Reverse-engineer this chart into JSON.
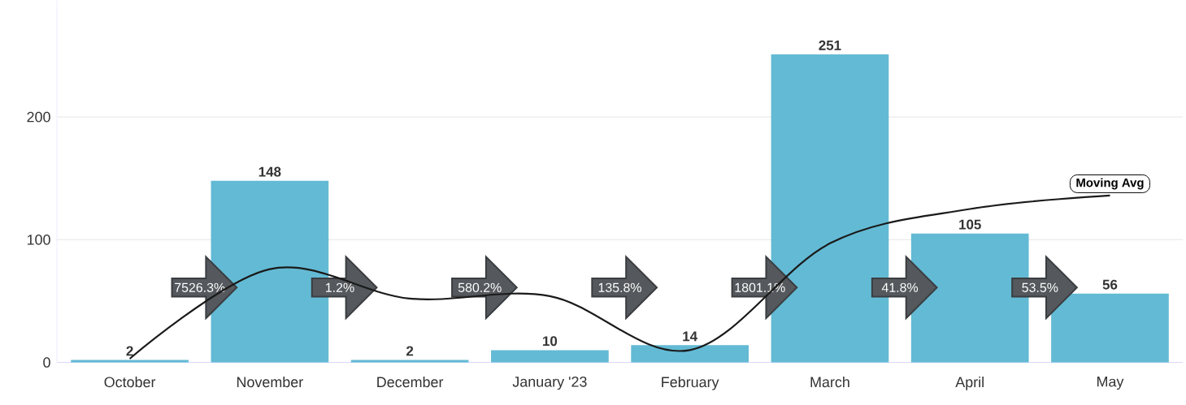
{
  "chart_data": {
    "type": "bar",
    "categories": [
      "October",
      "November",
      "December",
      "January '23",
      "February",
      "March",
      "April",
      "May"
    ],
    "series": [
      {
        "color": "#63bad4",
        "values": [
          2,
          148,
          2,
          10,
          14,
          251,
          105,
          56
        ],
        "value_labels": [
          "2",
          "148",
          "2",
          "10",
          "14",
          "251",
          "105",
          "56"
        ]
      },
      {
        "type": "line",
        "name": "Moving Avg",
        "color": "#1a1a1a",
        "values": [
          3,
          76,
          52,
          54,
          10,
          97,
          125,
          136
        ]
      }
    ],
    "annotations": [
      "7526.3%",
      "1.2%",
      "580.2%",
      "135.8%",
      "1801.1%",
      "41.8%",
      "53.5%"
    ],
    "ylim": [
      0,
      295
    ],
    "yticks": [
      0,
      100,
      200
    ],
    "grid": "y"
  }
}
